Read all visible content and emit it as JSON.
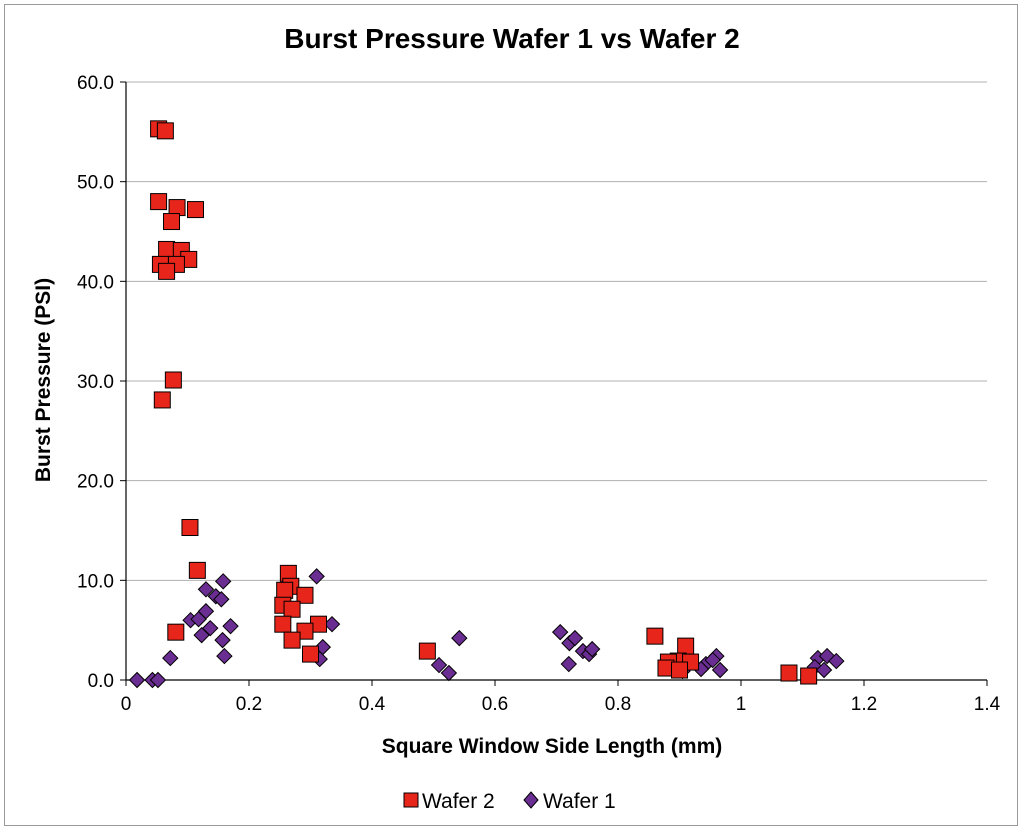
{
  "chart_data": {
    "type": "scatter",
    "title": "Burst Pressure Wafer 1 vs Wafer 2",
    "xlabel": "Square Window Side Length (mm)",
    "ylabel": "Burst Pressure (PSI)",
    "xlim": [
      0,
      1.4
    ],
    "ylim": [
      0,
      60
    ],
    "x_ticks": [
      "0",
      "0.2",
      "0.4",
      "0.6",
      "0.8",
      "1",
      "1.2",
      "1.4"
    ],
    "y_ticks": [
      "0.0",
      "10.0",
      "20.0",
      "30.0",
      "40.0",
      "50.0",
      "60.0"
    ],
    "grid": "horizontal",
    "legend_position": "bottom",
    "series": [
      {
        "name": "Wafer 2",
        "marker": "square",
        "color": "#e8251b",
        "points": [
          [
            0.053,
            55.3
          ],
          [
            0.064,
            55.1
          ],
          [
            0.053,
            48.0
          ],
          [
            0.083,
            47.4
          ],
          [
            0.113,
            47.2
          ],
          [
            0.074,
            46.0
          ],
          [
            0.066,
            43.2
          ],
          [
            0.09,
            43.1
          ],
          [
            0.102,
            42.2
          ],
          [
            0.056,
            41.7
          ],
          [
            0.082,
            41.7
          ],
          [
            0.066,
            41.0
          ],
          [
            0.077,
            30.1
          ],
          [
            0.059,
            28.1
          ],
          [
            0.104,
            15.3
          ],
          [
            0.116,
            11.0
          ],
          [
            0.081,
            4.8
          ],
          [
            0.264,
            10.7
          ],
          [
            0.268,
            9.4
          ],
          [
            0.258,
            9.0
          ],
          [
            0.291,
            8.5
          ],
          [
            0.255,
            7.5
          ],
          [
            0.27,
            7.1
          ],
          [
            0.255,
            5.6
          ],
          [
            0.313,
            5.6
          ],
          [
            0.291,
            4.9
          ],
          [
            0.27,
            4.0
          ],
          [
            0.3,
            2.6
          ],
          [
            0.49,
            2.9
          ],
          [
            0.86,
            4.4
          ],
          [
            0.91,
            3.4
          ],
          [
            0.898,
            1.9
          ],
          [
            0.882,
            1.8
          ],
          [
            0.918,
            1.8
          ],
          [
            0.878,
            1.2
          ],
          [
            0.9,
            1.0
          ],
          [
            1.078,
            0.7
          ],
          [
            1.11,
            0.4
          ]
        ]
      },
      {
        "name": "Wafer 1",
        "marker": "diamond",
        "color": "#6a2d91",
        "points": [
          [
            0.018,
            0.0
          ],
          [
            0.043,
            0.0
          ],
          [
            0.052,
            0.0
          ],
          [
            0.072,
            2.2
          ],
          [
            0.105,
            6.0
          ],
          [
            0.118,
            6.1
          ],
          [
            0.13,
            6.9
          ],
          [
            0.123,
            4.5
          ],
          [
            0.137,
            5.2
          ],
          [
            0.13,
            9.1
          ],
          [
            0.146,
            8.4
          ],
          [
            0.155,
            8.1
          ],
          [
            0.158,
            9.9
          ],
          [
            0.157,
            4.0
          ],
          [
            0.17,
            5.4
          ],
          [
            0.16,
            2.4
          ],
          [
            0.31,
            10.4
          ],
          [
            0.335,
            5.6
          ],
          [
            0.32,
            3.3
          ],
          [
            0.315,
            2.1
          ],
          [
            0.509,
            1.5
          ],
          [
            0.525,
            0.7
          ],
          [
            0.542,
            4.2
          ],
          [
            0.706,
            4.8
          ],
          [
            0.721,
            3.7
          ],
          [
            0.73,
            4.2
          ],
          [
            0.743,
            2.9
          ],
          [
            0.753,
            2.6
          ],
          [
            0.758,
            3.1
          ],
          [
            0.72,
            1.6
          ],
          [
            0.96,
            2.4
          ],
          [
            0.943,
            1.6
          ],
          [
            0.954,
            2.0
          ],
          [
            0.966,
            1.0
          ],
          [
            0.905,
            0.9
          ],
          [
            0.935,
            1.1
          ],
          [
            1.125,
            2.2
          ],
          [
            1.14,
            2.4
          ],
          [
            1.155,
            1.9
          ],
          [
            1.12,
            1.3
          ],
          [
            1.135,
            1.0
          ]
        ]
      }
    ]
  }
}
